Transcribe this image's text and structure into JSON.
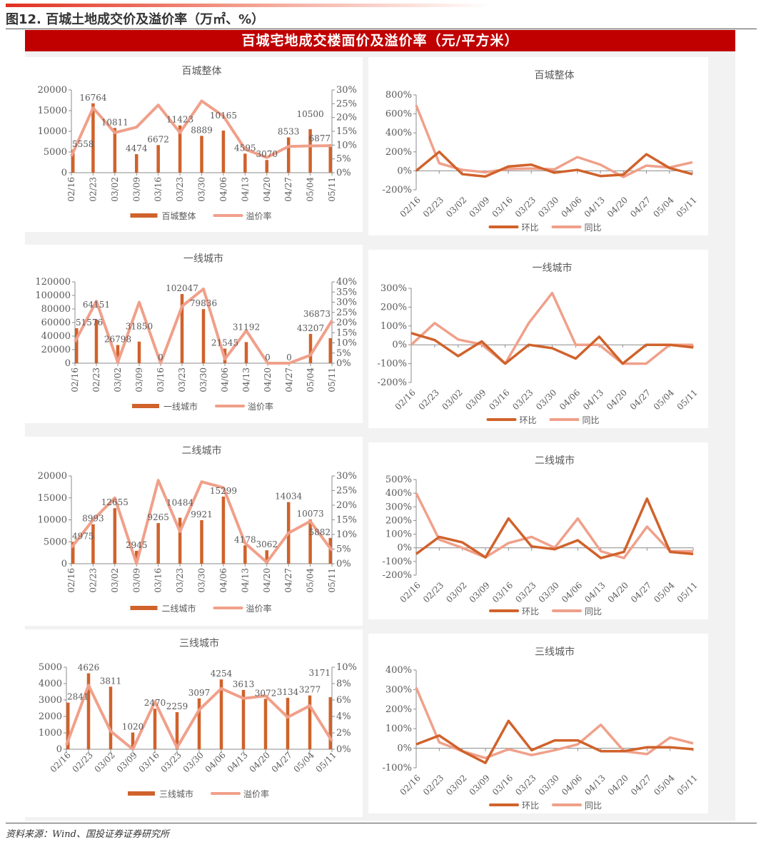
{
  "figure_title": "图12. 百城土地成交价及溢价率（万㎡、%）",
  "banner": "百城宅地成交楼面价及溢价率（元/平方米）",
  "source": "资料来源：Wind、国投证券证券研究所",
  "colors": {
    "bar": "#d0622b",
    "premium": "#f0a08a",
    "mom": "#d0622b",
    "yoy": "#f0a08a",
    "banner": "#c00000"
  },
  "chart_data": [
    {
      "type": "bar+line",
      "title": "百城整体",
      "categories": [
        "02/16",
        "02/23",
        "03/02",
        "03/09",
        "03/16",
        "03/23",
        "03/30",
        "04/06",
        "04/13",
        "04/20",
        "04/27",
        "05/04",
        "05/11"
      ],
      "series": [
        {
          "name": "百城整体",
          "kind": "bar",
          "axis": "left",
          "values": [
            5558,
            16764,
            10811,
            4474,
            6672,
            11423,
            8889,
            10165,
            4595,
            3070,
            8533,
            10500,
            6877
          ]
        },
        {
          "name": "溢价率",
          "kind": "line",
          "axis": "right",
          "values": [
            6,
            23.5,
            14.5,
            16.5,
            24.5,
            14.5,
            26,
            20.5,
            8.5,
            5.5,
            9.5,
            9.7,
            9.8
          ]
        }
      ],
      "ylim": [
        0,
        20000
      ],
      "ystep": 5000,
      "y2lim": [
        0,
        30
      ],
      "y2step": 5,
      "grid": false,
      "legend": "bottom"
    },
    {
      "type": "line",
      "title": "百城整体",
      "categories": [
        "02/16",
        "02/23",
        "03/02",
        "03/09",
        "03/16",
        "03/23",
        "03/30",
        "04/06",
        "04/13",
        "04/20",
        "04/27",
        "05/04",
        "05/11"
      ],
      "series": [
        {
          "name": "环比",
          "values": [
            0,
            200,
            -35,
            -60,
            45,
            65,
            -20,
            10,
            -55,
            -40,
            175,
            30,
            -35
          ]
        },
        {
          "name": "同比",
          "values": [
            690,
            80,
            10,
            -15,
            20,
            25,
            15,
            145,
            65,
            -65,
            55,
            35,
            90
          ]
        }
      ],
      "ylim": [
        -200,
        800
      ],
      "ystep": 200,
      "grid": false,
      "legend": "bottom"
    },
    {
      "type": "bar+line",
      "title": "一线城市",
      "categories": [
        "02/16",
        "02/23",
        "03/02",
        "03/09",
        "03/16",
        "03/23",
        "03/30",
        "04/06",
        "04/13",
        "04/20",
        "04/27",
        "05/04",
        "05/11"
      ],
      "series": [
        {
          "name": "一线城市",
          "kind": "bar",
          "axis": "left",
          "values": [
            51576,
            64151,
            26798,
            31850,
            0,
            102047,
            79836,
            21545,
            31192,
            0,
            0,
            43207,
            36873
          ]
        },
        {
          "name": "溢价率",
          "kind": "line",
          "axis": "right",
          "values": [
            10.5,
            30.5,
            0.5,
            30,
            0,
            28,
            36.5,
            2,
            16,
            0,
            0,
            4,
            21
          ]
        }
      ],
      "ylim": [
        0,
        120000
      ],
      "ystep": 20000,
      "y2lim": [
        0,
        40
      ],
      "y2step": 5,
      "grid": false,
      "legend": "bottom"
    },
    {
      "type": "line",
      "title": "一线城市",
      "categories": [
        "02/16",
        "02/23",
        "03/02",
        "03/09",
        "03/16",
        "03/23",
        "03/30",
        "04/06",
        "04/13",
        "04/20",
        "04/27",
        "05/04",
        "05/11"
      ],
      "series": [
        {
          "name": "环比",
          "values": [
            62,
            25,
            -60,
            18,
            -100,
            0,
            -18,
            -73,
            43,
            -100,
            0,
            0,
            -14
          ]
        },
        {
          "name": "同比",
          "values": [
            0,
            115,
            28,
            2,
            -100,
            115,
            275,
            0,
            0,
            -100,
            -100,
            0,
            0
          ]
        }
      ],
      "ylim": [
        -200,
        300
      ],
      "ystep": 100,
      "grid": false,
      "legend": "bottom"
    },
    {
      "type": "bar+line",
      "title": "二线城市",
      "categories": [
        "02/16",
        "02/23",
        "03/02",
        "03/09",
        "03/16",
        "03/23",
        "03/30",
        "04/06",
        "04/13",
        "04/20",
        "04/27",
        "05/04",
        "05/11"
      ],
      "series": [
        {
          "name": "二线城市",
          "kind": "bar",
          "axis": "left",
          "values": [
            4975,
            8993,
            12655,
            2945,
            9265,
            10484,
            9921,
            15299,
            4178,
            3062,
            14034,
            10073,
            5882
          ]
        },
        {
          "name": "溢价率",
          "kind": "line",
          "axis": "right",
          "values": [
            5.5,
            15,
            22.5,
            0,
            28.5,
            11,
            28,
            26,
            7,
            0.5,
            10.5,
            14.5,
            4.5
          ]
        }
      ],
      "ylim": [
        0,
        20000
      ],
      "ystep": 5000,
      "y2lim": [
        0,
        30
      ],
      "y2step": 5,
      "grid": false,
      "legend": "bottom"
    },
    {
      "type": "line",
      "title": "二线城市",
      "categories": [
        "02/16",
        "02/23",
        "03/02",
        "03/09",
        "03/16",
        "03/23",
        "03/30",
        "04/06",
        "04/13",
        "04/20",
        "04/27",
        "05/04",
        "05/11"
      ],
      "series": [
        {
          "name": "环比",
          "values": [
            -45,
            80,
            40,
            -70,
            215,
            10,
            -10,
            55,
            -75,
            -30,
            360,
            -30,
            -45
          ]
        },
        {
          "name": "同比",
          "values": [
            400,
            60,
            0,
            -70,
            35,
            80,
            0,
            215,
            -25,
            -75,
            155,
            -25,
            -25
          ]
        }
      ],
      "ylim": [
        -200,
        500
      ],
      "ystep": 100,
      "grid": false,
      "legend": "bottom"
    },
    {
      "type": "bar+line",
      "title": "三线城市",
      "categories": [
        "02/16",
        "02/23",
        "03/02",
        "03/09",
        "03/16",
        "03/23",
        "03/30",
        "04/06",
        "04/13",
        "04/20",
        "04/27",
        "05/04",
        "05/11"
      ],
      "series": [
        {
          "name": "三线城市",
          "kind": "bar",
          "axis": "left",
          "values": [
            2841,
            4626,
            3811,
            1020,
            2470,
            2259,
            3097,
            4254,
            3613,
            3072,
            3134,
            3277,
            3171
          ]
        },
        {
          "name": "溢价率",
          "kind": "line",
          "axis": "right",
          "values": [
            0.5,
            7.8,
            2.2,
            0,
            5.8,
            0.2,
            4.8,
            7.4,
            6.2,
            6.5,
            3.9,
            5.3,
            1.0
          ]
        }
      ],
      "ylim": [
        0,
        5000
      ],
      "ystep": 1000,
      "y2lim": [
        0,
        10
      ],
      "y2step": 2,
      "grid": false,
      "legend": "bottom"
    },
    {
      "type": "line",
      "title": "三线城市",
      "categories": [
        "02/16",
        "02/23",
        "03/02",
        "03/09",
        "03/16",
        "03/23",
        "03/30",
        "04/06",
        "04/13",
        "04/20",
        "04/27",
        "05/04",
        "05/11"
      ],
      "series": [
        {
          "name": "环比",
          "values": [
            20,
            65,
            -15,
            -75,
            140,
            -10,
            40,
            40,
            -15,
            -15,
            5,
            5,
            -5
          ]
        },
        {
          "name": "同比",
          "values": [
            310,
            30,
            -15,
            -50,
            -5,
            -35,
            -10,
            20,
            120,
            -15,
            -30,
            55,
            25
          ]
        }
      ],
      "ylim": [
        -100,
        400
      ],
      "ystep": 100,
      "grid": false,
      "legend": "bottom"
    }
  ]
}
